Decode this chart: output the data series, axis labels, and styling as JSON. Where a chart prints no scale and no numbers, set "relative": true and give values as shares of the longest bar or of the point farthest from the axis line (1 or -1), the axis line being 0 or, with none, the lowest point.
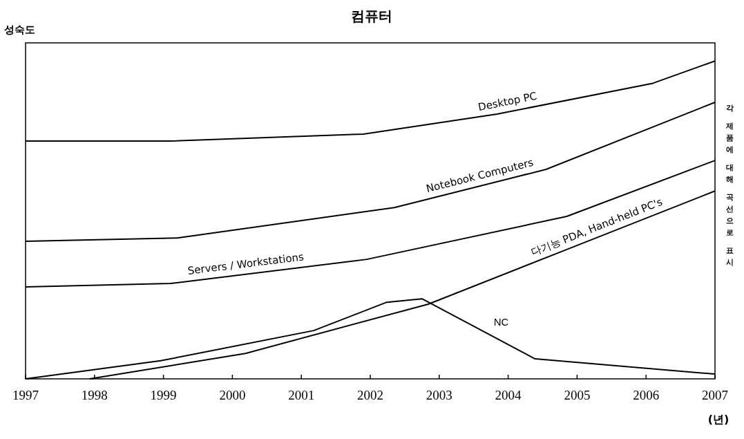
{
  "chart_data": {
    "type": "line",
    "title": "컴퓨터",
    "ylabel": "성숙도",
    "xlabel": "(년)",
    "relative": true,
    "xlim": [
      1997,
      2007
    ],
    "xticks": [
      1997,
      1998,
      1999,
      2000,
      2001,
      2002,
      2003,
      2004,
      2005,
      2006,
      2007
    ],
    "annotations": [
      "각 제품에 대해 곡선으로 표시"
    ],
    "legend": false,
    "grid": false,
    "marker": "none",
    "line_style": "solid",
    "series": [
      {
        "name": "Desktop PC",
        "color": "#000000",
        "x": [
          1997,
          1999.1,
          2001.9,
          2003.84,
          2006.1,
          2007
        ],
        "values": [
          0.748,
          0.748,
          0.77,
          0.833,
          0.93,
          1.0
        ]
      },
      {
        "name": "Notebook Computers",
        "color": "#000000",
        "x": [
          1997,
          1999.2,
          2002.35,
          2004.55,
          2007
        ],
        "values": [
          0.433,
          0.443,
          0.539,
          0.659,
          0.87
        ]
      },
      {
        "name": "Servers / Workstations",
        "color": "#000000",
        "x": [
          1997,
          1999.1,
          2001.95,
          2004.85,
          2007
        ],
        "values": [
          0.289,
          0.3,
          0.376,
          0.511,
          0.687
        ]
      },
      {
        "name": "다기능 PDA, Hand-held PC's",
        "color": "#000000",
        "x": [
          1997.93,
          2000.19,
          2002.84,
          2004.85,
          2007
        ],
        "values": [
          0,
          0.08,
          0.235,
          0.407,
          0.591
        ]
      },
      {
        "name": "NC",
        "color": "#000000",
        "x": [
          1997,
          1998.96,
          2001.18,
          2002.24,
          2002.75,
          2004.39,
          2007
        ],
        "values": [
          0,
          0.057,
          0.152,
          0.241,
          0.252,
          0.063,
          0.015
        ]
      }
    ]
  }
}
